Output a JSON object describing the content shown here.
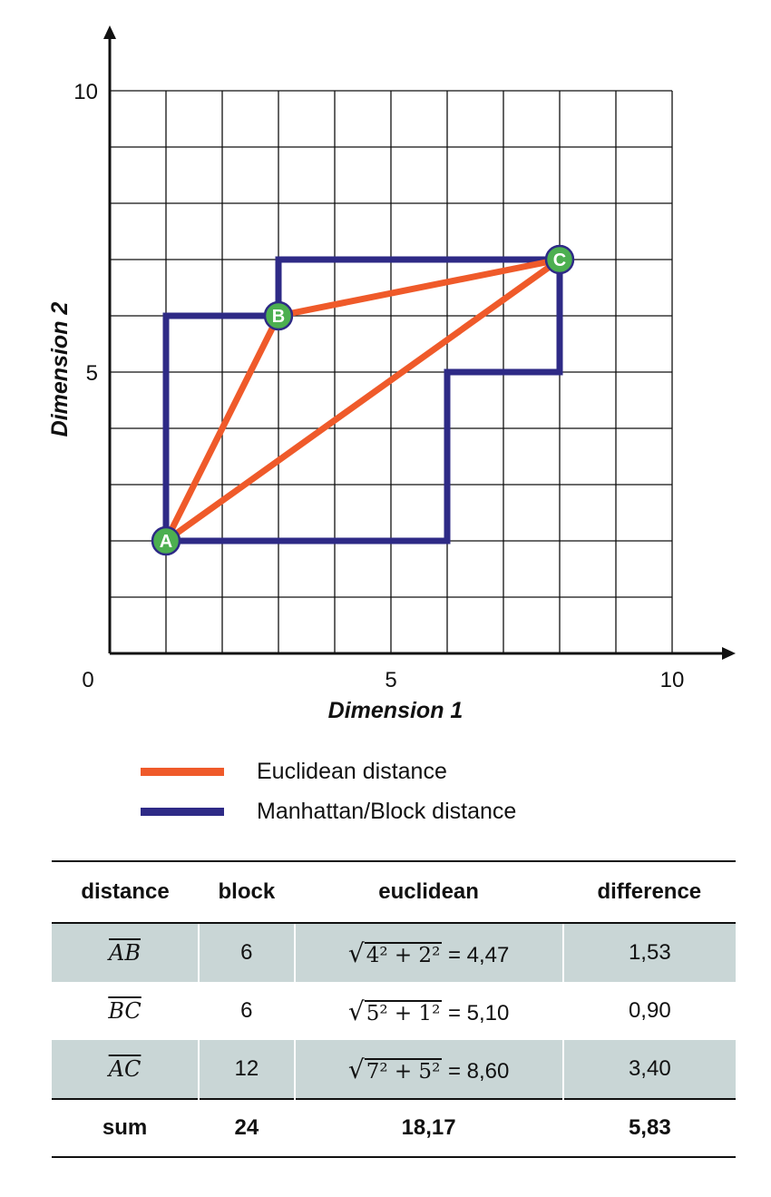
{
  "chart_data": {
    "type": "line",
    "xlabel": "Dimension 1",
    "ylabel": "Dimension 2",
    "xlim": [
      0,
      10
    ],
    "ylim": [
      0,
      10
    ],
    "xticks": [
      "0",
      "5",
      "10"
    ],
    "yticks": [
      "5",
      "10"
    ],
    "grid": true,
    "points": [
      {
        "name": "A",
        "x": 1,
        "y": 2
      },
      {
        "name": "B",
        "x": 3,
        "y": 6
      },
      {
        "name": "C",
        "x": 8,
        "y": 7
      }
    ],
    "series": [
      {
        "name": "Euclidean distance",
        "color": "#ef5a2a",
        "paths": [
          [
            [
              1,
              2
            ],
            [
              3,
              6
            ]
          ],
          [
            [
              3,
              6
            ],
            [
              8,
              7
            ]
          ],
          [
            [
              1,
              2
            ],
            [
              8,
              7
            ]
          ]
        ]
      },
      {
        "name": "Manhattan/Block distance",
        "color": "#2e2a86",
        "paths": [
          [
            [
              1,
              2
            ],
            [
              1,
              6
            ],
            [
              3,
              6
            ]
          ],
          [
            [
              3,
              6
            ],
            [
              3,
              7
            ],
            [
              8,
              7
            ]
          ],
          [
            [
              1,
              2
            ],
            [
              6,
              2
            ],
            [
              6,
              5
            ],
            [
              8,
              5
            ],
            [
              8,
              7
            ]
          ]
        ]
      }
    ],
    "point_color": "#4caf50"
  },
  "legend": {
    "euclidean": "Euclidean distance",
    "manhattan": "Manhattan/Block distance"
  },
  "table": {
    "headers": [
      "distance",
      "block",
      "euclidean",
      "difference"
    ],
    "rows": [
      {
        "segment": "AB",
        "block": "6",
        "radicand": "4² + 2²",
        "result": " = 4,47",
        "difference": "1,53"
      },
      {
        "segment": "BC",
        "block": "6",
        "radicand": "5² + 1²",
        "result": " = 5,10",
        "difference": "0,90"
      },
      {
        "segment": "AC",
        "block": "12",
        "radicand": "7² + 5²",
        "result": " = 8,60",
        "difference": "3,40"
      }
    ],
    "sum": {
      "label": "sum",
      "block": "24",
      "euclidean": "18,17",
      "difference": "5,83"
    },
    "shade_color": "#c9d6d6"
  }
}
